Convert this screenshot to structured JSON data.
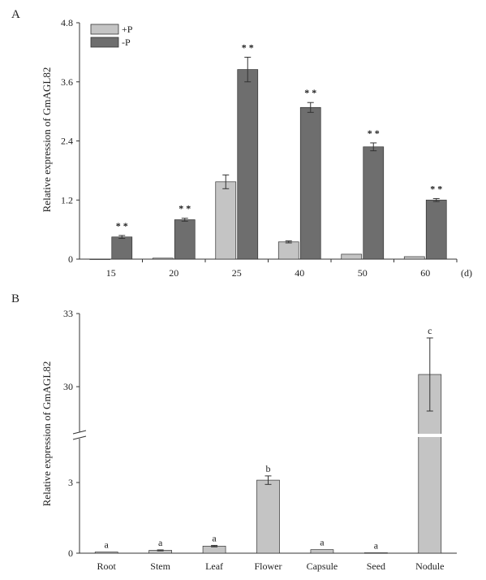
{
  "colors": {
    "plus_p": "#c4c4c4",
    "minus_p": "#6e6e6e",
    "bar_b": "#c4c4c4",
    "axis": "#333333"
  },
  "chart_data": [
    {
      "panel_label": "A",
      "type": "bar",
      "ylabel": "Relative expression of GmAGL82",
      "x_unit": "(d)",
      "ylim": [
        0,
        4.8
      ],
      "yticks": [
        "0",
        "1.2",
        "2.4",
        "3.6",
        "4.8"
      ],
      "categories": [
        "15",
        "20",
        "25",
        "40",
        "50",
        "60"
      ],
      "legend": {
        "position": "top-left"
      },
      "series": [
        {
          "name": "+P",
          "values": [
            0.0,
            0.02,
            1.57,
            0.35,
            0.1,
            0.05
          ],
          "errors": [
            0,
            0,
            0.14,
            0.02,
            0,
            0
          ]
        },
        {
          "name": "-P",
          "values": [
            0.45,
            0.8,
            3.85,
            3.08,
            2.28,
            1.2
          ],
          "errors": [
            0.03,
            0.03,
            0.25,
            0.1,
            0.08,
            0.03
          ]
        }
      ],
      "annotations": [
        "* *",
        "* *",
        "* *",
        "* *",
        "* *",
        "* *"
      ]
    },
    {
      "panel_label": "B",
      "type": "bar",
      "ylabel": "Relative expression of GmAGL82",
      "axis_break": [
        5,
        28
      ],
      "yticks": [
        "0",
        "3",
        "30",
        "33"
      ],
      "categories": [
        "Root",
        "Stem",
        "Leaf",
        "Flower",
        "Capsule",
        "Seed",
        "Nodule"
      ],
      "series": [
        {
          "values": [
            0.05,
            0.12,
            0.3,
            3.1,
            0.15,
            0.02,
            30.5
          ],
          "errors": [
            0,
            0.02,
            0.03,
            0.18,
            0,
            0,
            1.5
          ]
        }
      ],
      "annotations": [
        "a",
        "a",
        "a",
        "b",
        "a",
        "a",
        "c"
      ]
    }
  ]
}
